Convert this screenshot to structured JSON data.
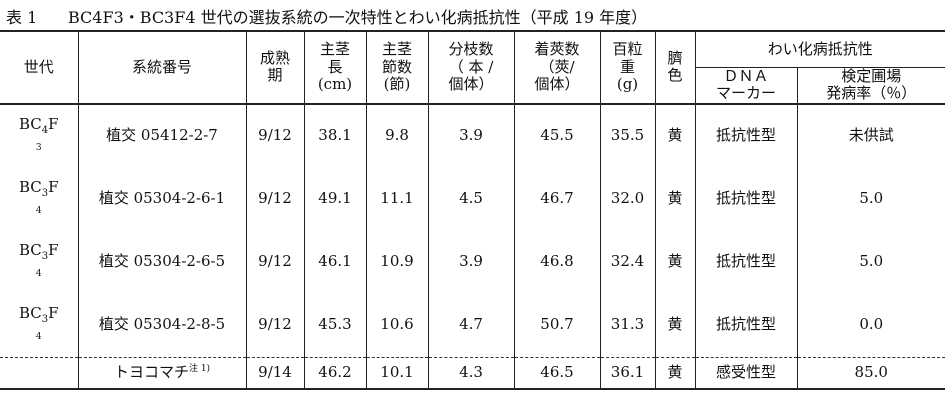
{
  "title": {
    "num": "表 1",
    "text": "BC4F3・BC3F4 世代の選抜系統の一次特性とわい化病抵抗性（平成 19 年度）"
  },
  "headers": {
    "generation": "世代",
    "line_no": "系統番号",
    "maturity": [
      "成熟",
      "期"
    ],
    "stem_length": [
      "主茎",
      "長",
      "(cm)"
    ],
    "nodes": [
      "主茎",
      "節数",
      "(節)"
    ],
    "branches": [
      "分枝数",
      "（ 本 /",
      "個体）"
    ],
    "pods": [
      "着莢数",
      "（莢/",
      "個体）"
    ],
    "seed_weight": [
      "百粒",
      "重",
      "(g)"
    ],
    "hilum": [
      "臍",
      "色"
    ],
    "dwarf_group": "わい化病抵抗性",
    "dna_marker": [
      "ＤＮＡ",
      "マーカー"
    ],
    "field_rate": [
      "検定圃場",
      "発病率（％）"
    ]
  },
  "rows": [
    {
      "gen_main": "BC",
      "gen_sub1": "4",
      "gen_f": "F",
      "gen_sub2": "3",
      "line": "植交 05412-2-7",
      "maturity": "9/12",
      "stem": "38.1",
      "nodes": "9.8",
      "branches": "3.9",
      "pods": "45.5",
      "weight": "35.5",
      "hilum": "黄",
      "marker": "抵抗性型",
      "rate": "未供試"
    },
    {
      "gen_main": "BC",
      "gen_sub1": "3",
      "gen_f": "F",
      "gen_sub2": "4",
      "line": "植交 05304-2-6-1",
      "maturity": "9/12",
      "stem": "49.1",
      "nodes": "11.1",
      "branches": "4.5",
      "pods": "46.7",
      "weight": "32.0",
      "hilum": "黄",
      "marker": "抵抗性型",
      "rate": "5.0"
    },
    {
      "gen_main": "BC",
      "gen_sub1": "3",
      "gen_f": "F",
      "gen_sub2": "4",
      "line": "植交 05304-2-6-5",
      "maturity": "9/12",
      "stem": "46.1",
      "nodes": "10.9",
      "branches": "3.9",
      "pods": "46.8",
      "weight": "32.4",
      "hilum": "黄",
      "marker": "抵抗性型",
      "rate": "5.0"
    },
    {
      "gen_main": "BC",
      "gen_sub1": "3",
      "gen_f": "F",
      "gen_sub2": "4",
      "line": "植交 05304-2-8-5",
      "maturity": "9/12",
      "stem": "45.3",
      "nodes": "10.6",
      "branches": "4.7",
      "pods": "50.7",
      "weight": "31.3",
      "hilum": "黄",
      "marker": "抵抗性型",
      "rate": "0.0"
    }
  ],
  "control": {
    "line": "トヨコマチ",
    "note": "注 1)",
    "maturity": "9/14",
    "stem": "46.2",
    "nodes": "10.1",
    "branches": "4.3",
    "pods": "46.5",
    "weight": "36.1",
    "hilum": "黄",
    "marker": "感受性型",
    "rate": "85.0"
  }
}
